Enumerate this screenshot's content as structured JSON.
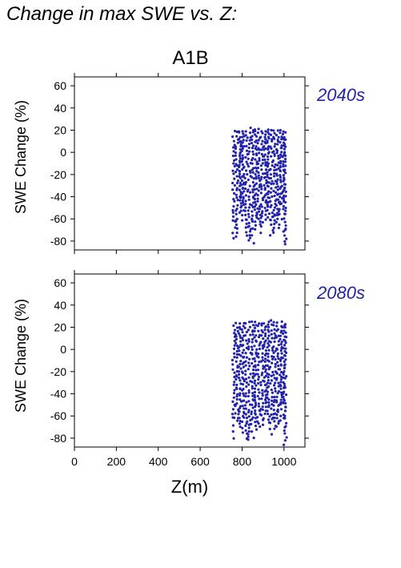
{
  "page": {
    "title": "Change in max SWE vs. Z:"
  },
  "chart_data": [
    {
      "type": "scatter",
      "title": "A1B",
      "panel_label": "2040s",
      "xlabel": "",
      "ylabel": "SWE Change (%)",
      "xlim": [
        0,
        1100
      ],
      "ylim": [
        -88,
        68
      ],
      "xticks": [
        0,
        200,
        400,
        600,
        800,
        1000
      ],
      "yticks": [
        -80,
        -60,
        -40,
        -20,
        0,
        20,
        40,
        60
      ],
      "show_x_tick_labels": false,
      "grid": false,
      "marker_color": "#2222aa",
      "summary_columns": [
        {
          "x": 760,
          "ymin": -78,
          "ymax": 18
        },
        {
          "x": 775,
          "ymin": -76,
          "ymax": 18
        },
        {
          "x": 790,
          "ymin": -55,
          "ymax": 19
        },
        {
          "x": 805,
          "ymin": -62,
          "ymax": 19
        },
        {
          "x": 820,
          "ymin": -75,
          "ymax": 20
        },
        {
          "x": 835,
          "ymin": -80,
          "ymax": 21
        },
        {
          "x": 850,
          "ymin": -82,
          "ymax": 21
        },
        {
          "x": 865,
          "ymin": -70,
          "ymax": 21
        },
        {
          "x": 880,
          "ymin": -65,
          "ymax": 20
        },
        {
          "x": 895,
          "ymin": -72,
          "ymax": 20
        },
        {
          "x": 910,
          "ymin": -60,
          "ymax": 19
        },
        {
          "x": 925,
          "ymin": -58,
          "ymax": 20
        },
        {
          "x": 940,
          "ymin": -75,
          "ymax": 20
        },
        {
          "x": 955,
          "ymin": -72,
          "ymax": 20
        },
        {
          "x": 970,
          "ymin": -68,
          "ymax": 19
        },
        {
          "x": 985,
          "ymin": -60,
          "ymax": 19
        },
        {
          "x": 1000,
          "ymin": -55,
          "ymax": 18
        },
        {
          "x": 1005,
          "ymin": -83,
          "ymax": 18
        }
      ]
    },
    {
      "type": "scatter",
      "title": "",
      "panel_label": "2080s",
      "xlabel": "Z(m)",
      "ylabel": "SWE Change (%)",
      "xlim": [
        0,
        1100
      ],
      "ylim": [
        -88,
        68
      ],
      "xticks": [
        0,
        200,
        400,
        600,
        800,
        1000
      ],
      "yticks": [
        -80,
        -60,
        -40,
        -20,
        0,
        20,
        40,
        60
      ],
      "show_x_tick_labels": true,
      "grid": false,
      "marker_color": "#2222aa",
      "summary_columns": [
        {
          "x": 760,
          "ymin": -80,
          "ymax": 22
        },
        {
          "x": 775,
          "ymin": -65,
          "ymax": 23
        },
        {
          "x": 790,
          "ymin": -70,
          "ymax": 23
        },
        {
          "x": 805,
          "ymin": -75,
          "ymax": 23
        },
        {
          "x": 820,
          "ymin": -80,
          "ymax": 24
        },
        {
          "x": 835,
          "ymin": -82,
          "ymax": 24
        },
        {
          "x": 850,
          "ymin": -80,
          "ymax": 24
        },
        {
          "x": 865,
          "ymin": -72,
          "ymax": 24
        },
        {
          "x": 880,
          "ymin": -70,
          "ymax": 24
        },
        {
          "x": 895,
          "ymin": -68,
          "ymax": 24
        },
        {
          "x": 910,
          "ymin": -62,
          "ymax": 24
        },
        {
          "x": 925,
          "ymin": -66,
          "ymax": 25
        },
        {
          "x": 940,
          "ymin": -76,
          "ymax": 25
        },
        {
          "x": 955,
          "ymin": -72,
          "ymax": 25
        },
        {
          "x": 970,
          "ymin": -70,
          "ymax": 24
        },
        {
          "x": 985,
          "ymin": -64,
          "ymax": 24
        },
        {
          "x": 1000,
          "ymin": -62,
          "ymax": 23
        },
        {
          "x": 1005,
          "ymin": -86,
          "ymax": 23
        }
      ]
    }
  ]
}
